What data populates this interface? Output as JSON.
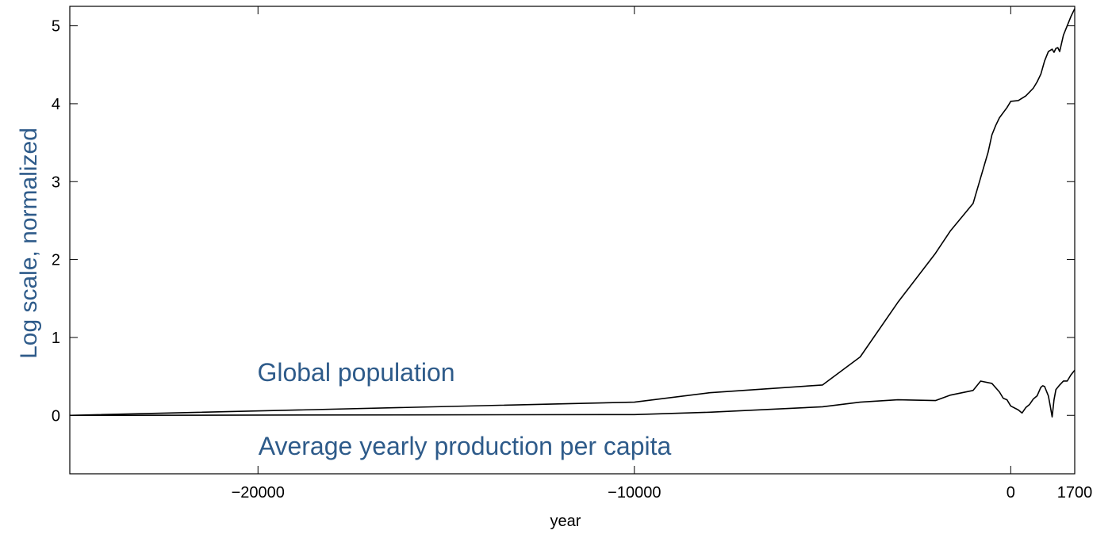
{
  "chart_data": {
    "type": "line",
    "title": "",
    "xlabel": "year",
    "ylabel": "Log scale, normalized",
    "xlim": [
      -25000,
      1700
    ],
    "ylim": [
      -0.75,
      5.25
    ],
    "x_ticks": [
      {
        "value": -20000,
        "label": "−20000"
      },
      {
        "value": -10000,
        "label": "−10000"
      },
      {
        "value": 0,
        "label": "0"
      },
      {
        "value": 1700,
        "label": "1700"
      }
    ],
    "y_ticks": [
      {
        "value": 0,
        "label": "0"
      },
      {
        "value": 1,
        "label": "1"
      },
      {
        "value": 2,
        "label": "2"
      },
      {
        "value": 3,
        "label": "3"
      },
      {
        "value": 4,
        "label": "4"
      },
      {
        "value": 5,
        "label": "5"
      }
    ],
    "grid": false,
    "legend": "none",
    "series": [
      {
        "name": "Global population",
        "color": "#000000",
        "points": [
          [
            -25000,
            0.0
          ],
          [
            -10000,
            0.17
          ],
          [
            -8000,
            0.29
          ],
          [
            -5000,
            0.39
          ],
          [
            -4000,
            0.75
          ],
          [
            -3000,
            1.45
          ],
          [
            -2000,
            2.08
          ],
          [
            -1600,
            2.37
          ],
          [
            -1000,
            2.72
          ],
          [
            -800,
            3.05
          ],
          [
            -600,
            3.38
          ],
          [
            -500,
            3.6
          ],
          [
            -400,
            3.72
          ],
          [
            -300,
            3.82
          ],
          [
            -100,
            3.95
          ],
          [
            0,
            4.03
          ],
          [
            200,
            4.04
          ],
          [
            400,
            4.1
          ],
          [
            500,
            4.15
          ],
          [
            600,
            4.2
          ],
          [
            700,
            4.28
          ],
          [
            800,
            4.38
          ],
          [
            900,
            4.55
          ],
          [
            1000,
            4.67
          ],
          [
            1100,
            4.7
          ],
          [
            1150,
            4.66
          ],
          [
            1200,
            4.71
          ],
          [
            1250,
            4.72
          ],
          [
            1300,
            4.67
          ],
          [
            1400,
            4.88
          ],
          [
            1500,
            5.0
          ],
          [
            1600,
            5.12
          ],
          [
            1700,
            5.22
          ]
        ]
      },
      {
        "name": "Average yearly production per capita",
        "color": "#000000",
        "points": [
          [
            -25000,
            0.0
          ],
          [
            -10000,
            0.01
          ],
          [
            -8000,
            0.04
          ],
          [
            -5000,
            0.11
          ],
          [
            -4000,
            0.17
          ],
          [
            -3000,
            0.2
          ],
          [
            -2000,
            0.19
          ],
          [
            -1600,
            0.26
          ],
          [
            -1000,
            0.32
          ],
          [
            -800,
            0.44
          ],
          [
            -500,
            0.41
          ],
          [
            -300,
            0.3
          ],
          [
            -200,
            0.22
          ],
          [
            -100,
            0.2
          ],
          [
            0,
            0.12
          ],
          [
            200,
            0.07
          ],
          [
            300,
            0.03
          ],
          [
            400,
            0.1
          ],
          [
            500,
            0.14
          ],
          [
            600,
            0.21
          ],
          [
            700,
            0.25
          ],
          [
            800,
            0.36
          ],
          [
            850,
            0.38
          ],
          [
            900,
            0.37
          ],
          [
            1000,
            0.25
          ],
          [
            1050,
            0.12
          ],
          [
            1100,
            -0.02
          ],
          [
            1150,
            0.2
          ],
          [
            1200,
            0.33
          ],
          [
            1300,
            0.39
          ],
          [
            1400,
            0.44
          ],
          [
            1500,
            0.44
          ],
          [
            1600,
            0.52
          ],
          [
            1700,
            0.58
          ]
        ]
      }
    ],
    "annotations": [
      {
        "text": "Global population",
        "x": -14000,
        "y": 0.55
      },
      {
        "text": "Average yearly production per capita",
        "x": -14000,
        "y": -0.35
      }
    ],
    "colors": {
      "axis": "#000000",
      "line": "#000000",
      "label_text": "#2e5b8a"
    }
  }
}
